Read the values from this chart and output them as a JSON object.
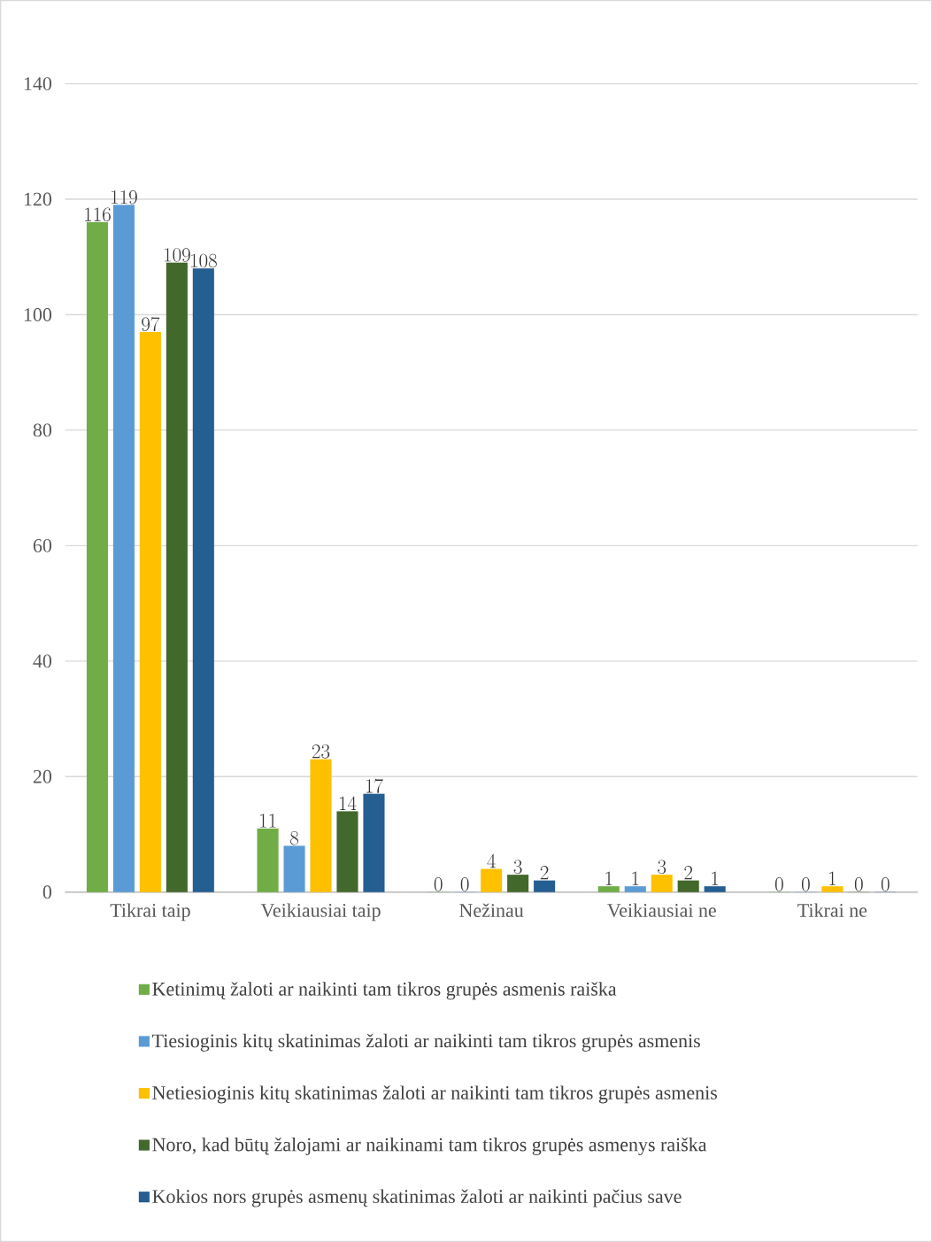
{
  "chart_data": {
    "type": "bar",
    "categories": [
      "Tikrai taip",
      "Veikiausiai taip",
      "Nežinau",
      "Veikiausiai ne",
      "Tikrai ne"
    ],
    "series": [
      {
        "name": "Ketinimų žaloti ar naikinti tam tikros grupės asmenis raiška",
        "color": "#70ad47",
        "values": [
          116,
          11,
          0,
          1,
          0
        ]
      },
      {
        "name": "Tiesioginis kitų skatinimas žaloti ar naikinti tam tikros grupės asmenis",
        "color": "#5b9bd5",
        "values": [
          119,
          8,
          0,
          1,
          0
        ]
      },
      {
        "name": "Netiesioginis kitų skatinimas žaloti ar naikinti tam tikros grupės asmenis",
        "color": "#ffc000",
        "values": [
          97,
          23,
          4,
          3,
          1
        ]
      },
      {
        "name": "Noro, kad būtų žalojami ar naikinami tam tikros grupės asmenys raiška",
        "color": "#43682b",
        "values": [
          109,
          14,
          3,
          2,
          0
        ]
      },
      {
        "name": "Kokios nors grupės asmenų skatinimas žaloti ar naikinti pačius save",
        "color": "#255e91",
        "values": [
          108,
          17,
          2,
          1,
          0
        ]
      }
    ],
    "ylim": [
      0,
      140
    ],
    "yticks": [
      0,
      20,
      40,
      60,
      80,
      100,
      120,
      140
    ],
    "grid": "y",
    "legend": "bottom",
    "data_labels": true
  }
}
